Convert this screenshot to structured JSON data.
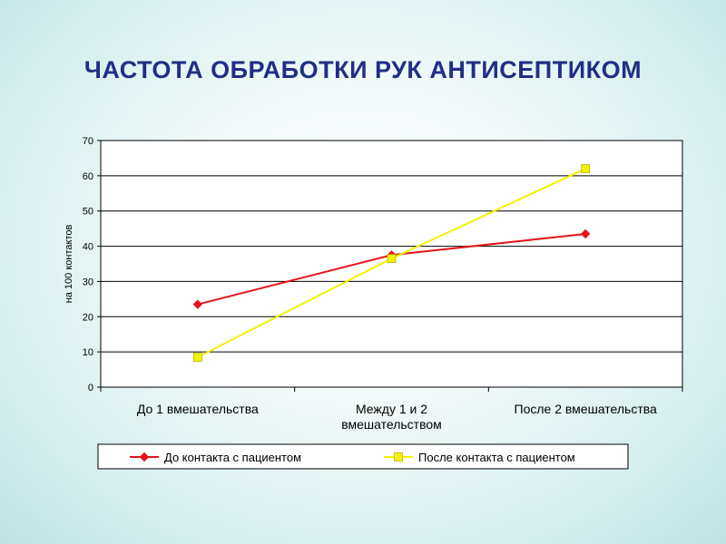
{
  "slide": {
    "title": "ЧАСТОТА ОБРАБОТКИ РУК АНТИСЕПТИКОМ"
  },
  "chart_data": {
    "type": "line",
    "categories": [
      [
        "До 1 вмешательства"
      ],
      [
        "Между 1 и 2",
        "вмешательством"
      ],
      [
        "После 2 вмешательства"
      ]
    ],
    "series": [
      {
        "name": "До контакта с пациентом",
        "values": [
          23.5,
          37.5,
          43.5
        ],
        "color": "#e3141b",
        "marker": "diamond"
      },
      {
        "name": "После контакта с пациентом",
        "values": [
          8.5,
          36.5,
          62
        ],
        "color": "#f2f200",
        "marker": "square"
      }
    ],
    "ylabel": "на 100 контактов",
    "ylim": [
      0,
      70
    ],
    "yticks": [
      0,
      10,
      20,
      30,
      40,
      50,
      60,
      70
    ],
    "grid": true,
    "legend": "bottom"
  }
}
